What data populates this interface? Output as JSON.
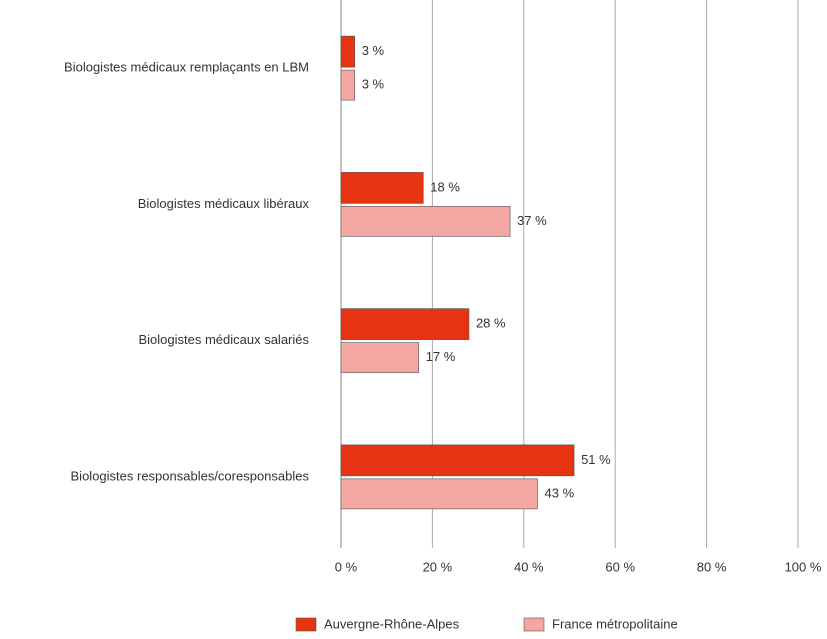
{
  "chart_data": {
    "type": "bar",
    "orientation": "horizontal",
    "categories": [
      "Biologistes médicaux remplaçants en LBM",
      "Biologistes médicaux libéraux",
      "Biologistes médicaux salariés",
      "Biologistes responsables/coresponsables"
    ],
    "series": [
      {
        "name": "Auvergne-Rhône-Alpes",
        "color": "#e63312",
        "values": [
          3,
          18,
          28,
          51
        ],
        "value_labels": [
          "3 %",
          "18 %",
          "28 %",
          "51 %"
        ]
      },
      {
        "name": "France métropolitaine",
        "color": "#f4a6a3",
        "values": [
          3,
          37,
          17,
          43
        ],
        "value_labels": [
          "3 %",
          "37 %",
          "17 %",
          "43 %"
        ]
      }
    ],
    "xlim": [
      0,
      100
    ],
    "xticks": [
      {
        "value": 0,
        "label": "0 %"
      },
      {
        "value": 20,
        "label": "20 %"
      },
      {
        "value": 40,
        "label": "40 %"
      },
      {
        "value": 60,
        "label": "60 %"
      },
      {
        "value": 80,
        "label": "80 %"
      },
      {
        "value": 100,
        "label": "100 %"
      }
    ],
    "grid": true,
    "legend": "bottom"
  }
}
